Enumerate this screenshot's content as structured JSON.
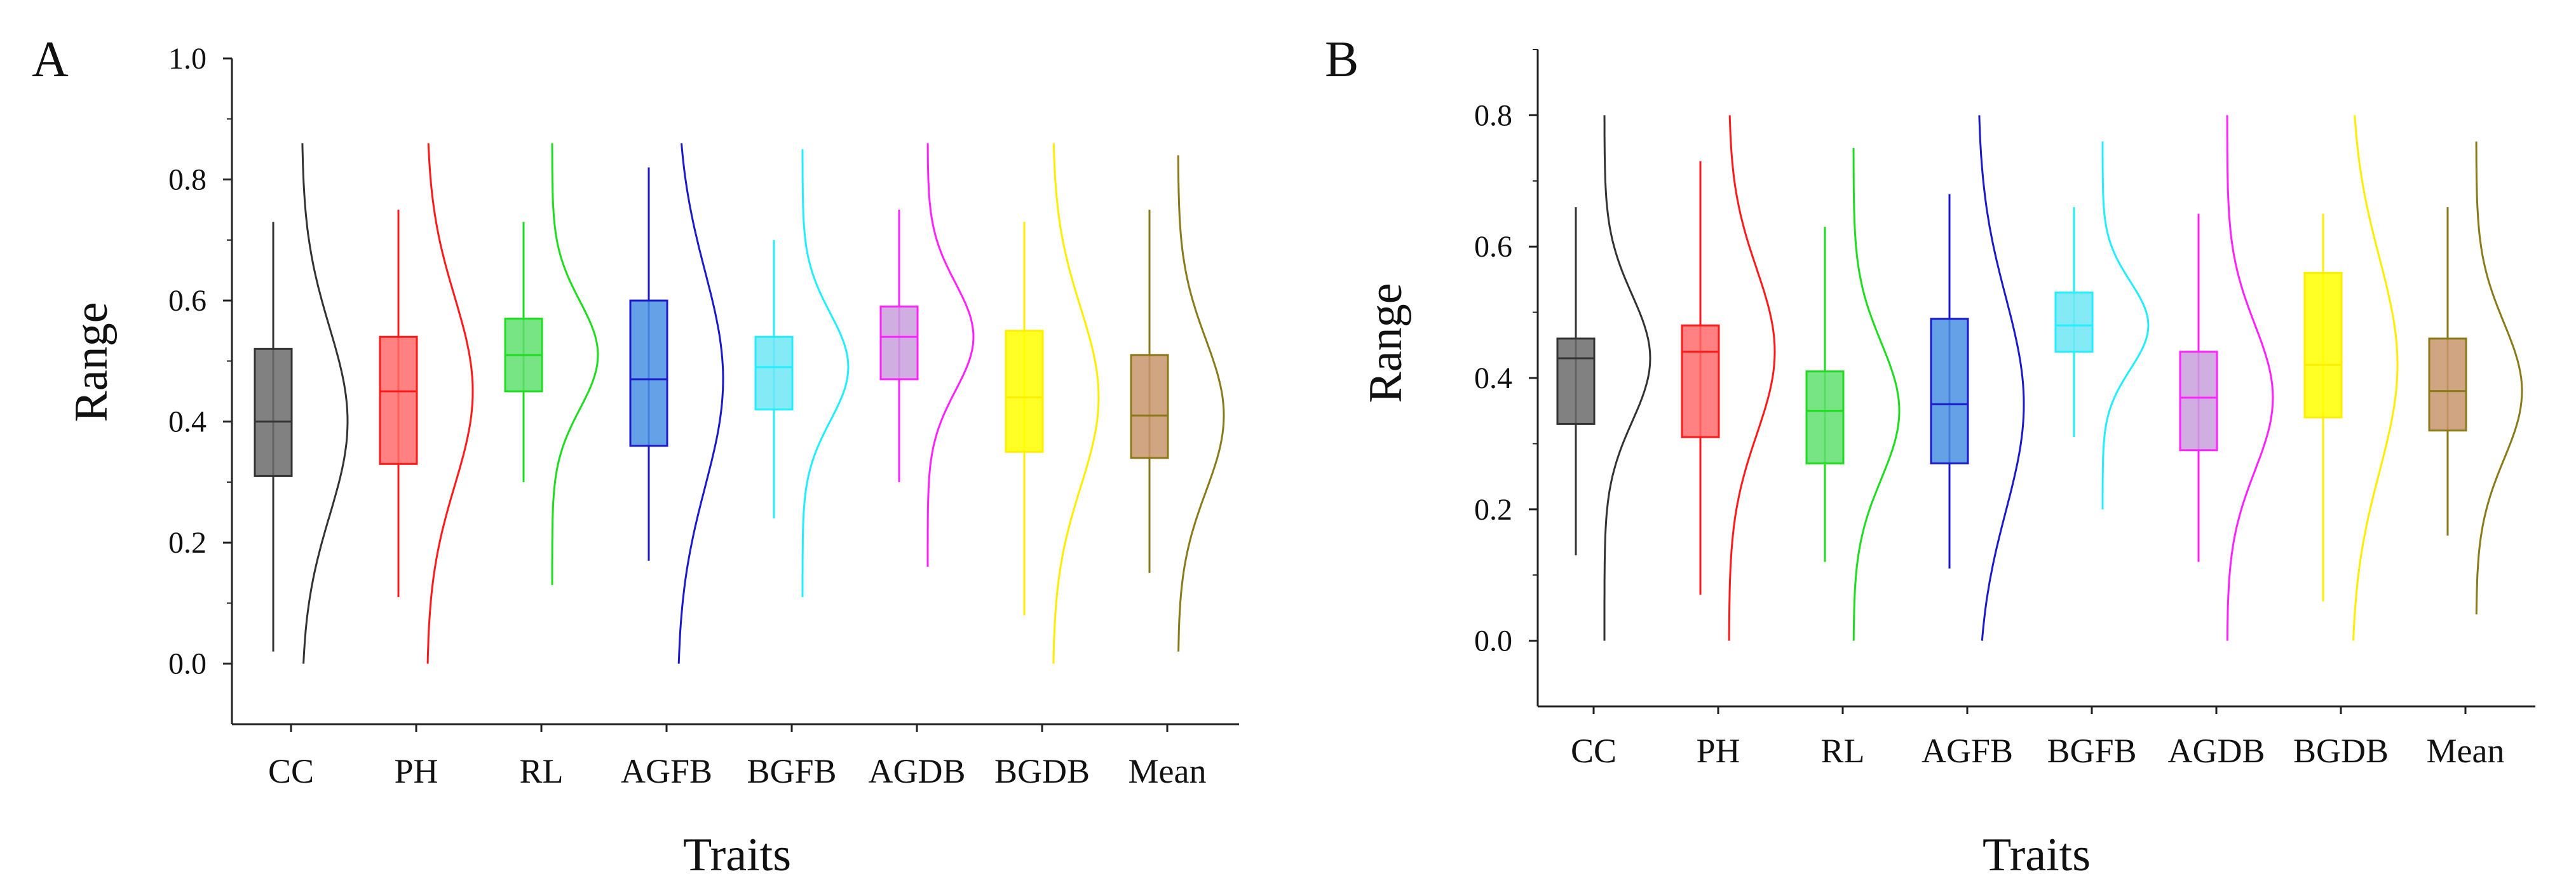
{
  "chart_data": [
    {
      "type": "box",
      "panel": "A",
      "xlabel": "Traits",
      "ylabel": "Range",
      "ylim": [
        -0.1,
        1.0
      ],
      "yticks": [
        "0.0",
        "0.2",
        "0.4",
        "0.6",
        "0.8",
        "1.0"
      ],
      "categories": [
        "CC",
        "PH",
        "RL",
        "AGFB",
        "BGFB",
        "AGDB",
        "BGDB",
        "Mean"
      ],
      "colors": [
        "#6b6b6b",
        "#ff6b6b",
        "#5fe06f",
        "#4a90e2",
        "#6ee8f5",
        "#c9a0dc",
        "#ffff00",
        "#c8956b"
      ],
      "series": [
        {
          "name": "CC",
          "min": 0.02,
          "q1": 0.31,
          "median": 0.4,
          "q3": 0.52,
          "max": 0.73,
          "density": [
            0.0,
            0.86
          ]
        },
        {
          "name": "PH",
          "min": 0.11,
          "q1": 0.33,
          "median": 0.45,
          "q3": 0.54,
          "max": 0.75,
          "density": [
            0.0,
            0.86
          ]
        },
        {
          "name": "RL",
          "min": 0.3,
          "q1": 0.45,
          "median": 0.51,
          "q3": 0.57,
          "max": 0.73,
          "density": [
            0.13,
            0.86
          ]
        },
        {
          "name": "AGFB",
          "min": 0.17,
          "q1": 0.36,
          "median": 0.47,
          "q3": 0.6,
          "max": 0.82,
          "density": [
            0.0,
            0.86
          ]
        },
        {
          "name": "BGFB",
          "min": 0.24,
          "q1": 0.42,
          "median": 0.49,
          "q3": 0.54,
          "max": 0.7,
          "density": [
            0.11,
            0.85
          ]
        },
        {
          "name": "AGDB",
          "min": 0.3,
          "q1": 0.47,
          "median": 0.54,
          "q3": 0.59,
          "max": 0.75,
          "density": [
            0.16,
            0.86
          ]
        },
        {
          "name": "BGDB",
          "min": 0.08,
          "q1": 0.35,
          "median": 0.44,
          "q3": 0.55,
          "max": 0.73,
          "density": [
            0.0,
            0.86
          ]
        },
        {
          "name": "Mean",
          "min": 0.15,
          "q1": 0.34,
          "median": 0.41,
          "q3": 0.51,
          "max": 0.75,
          "density": [
            0.02,
            0.84
          ]
        }
      ]
    },
    {
      "type": "box",
      "panel": "B",
      "xlabel": "Traits",
      "ylabel": "Range",
      "ylim": [
        -0.1,
        0.9
      ],
      "yticks": [
        "0.0",
        "0.2",
        "0.4",
        "0.6",
        "0.8"
      ],
      "categories": [
        "CC",
        "PH",
        "RL",
        "AGFB",
        "BGFB",
        "AGDB",
        "BGDB",
        "Mean"
      ],
      "colors": [
        "#6b6b6b",
        "#ff6b6b",
        "#5fe06f",
        "#4a90e2",
        "#6ee8f5",
        "#c9a0dc",
        "#ffff00",
        "#c8956b"
      ],
      "series": [
        {
          "name": "CC",
          "min": 0.13,
          "q1": 0.33,
          "median": 0.43,
          "q3": 0.46,
          "max": 0.66,
          "density": [
            0.0,
            0.8
          ]
        },
        {
          "name": "PH",
          "min": 0.07,
          "q1": 0.31,
          "median": 0.44,
          "q3": 0.48,
          "max": 0.73,
          "density": [
            0.0,
            0.8
          ]
        },
        {
          "name": "RL",
          "min": 0.12,
          "q1": 0.27,
          "median": 0.35,
          "q3": 0.41,
          "max": 0.63,
          "density": [
            0.0,
            0.75
          ]
        },
        {
          "name": "AGFB",
          "min": 0.11,
          "q1": 0.27,
          "median": 0.36,
          "q3": 0.49,
          "max": 0.68,
          "density": [
            0.0,
            0.8
          ]
        },
        {
          "name": "BGFB",
          "min": 0.31,
          "q1": 0.44,
          "median": 0.48,
          "q3": 0.53,
          "max": 0.66,
          "density": [
            0.2,
            0.76
          ]
        },
        {
          "name": "AGDB",
          "min": 0.12,
          "q1": 0.29,
          "median": 0.37,
          "q3": 0.44,
          "max": 0.65,
          "density": [
            0.0,
            0.8
          ]
        },
        {
          "name": "BGDB",
          "min": 0.06,
          "q1": 0.34,
          "median": 0.42,
          "q3": 0.56,
          "max": 0.65,
          "density": [
            0.0,
            0.8
          ]
        },
        {
          "name": "Mean",
          "min": 0.16,
          "q1": 0.32,
          "median": 0.38,
          "q3": 0.46,
          "max": 0.66,
          "density": [
            0.04,
            0.76
          ]
        }
      ]
    }
  ]
}
